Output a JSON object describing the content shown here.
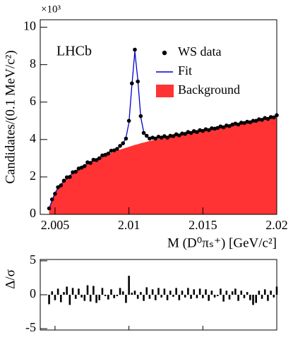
{
  "chart_data": {
    "type": "lhcb_fit",
    "brand": "LHCb",
    "y_exponent_label": "×10³",
    "ylabel": "Candidates/(0.1 MeV/c²)",
    "xlabel": "M (D⁰πₛ⁺) [GeV/c²]",
    "x": [
      2.0046,
      2.0048,
      2.005,
      2.0052,
      2.0054,
      2.0056,
      2.0058,
      2.006,
      2.0062,
      2.0064,
      2.0066,
      2.0068,
      2.007,
      2.0072,
      2.0074,
      2.0076,
      2.0078,
      2.008,
      2.0082,
      2.0084,
      2.0086,
      2.0088,
      2.009,
      2.0092,
      2.0094,
      2.0096,
      2.0098,
      2.01,
      2.0102,
      2.0104,
      2.0106,
      2.0108,
      2.011,
      2.0112,
      2.0114,
      2.0116,
      2.0118,
      2.012,
      2.0122,
      2.0124,
      2.0126,
      2.0128,
      2.013,
      2.0132,
      2.0134,
      2.0136,
      2.0138,
      2.014,
      2.0142,
      2.0144,
      2.0146,
      2.0148,
      2.015,
      2.0152,
      2.0154,
      2.0156,
      2.0158,
      2.016,
      2.0162,
      2.0164,
      2.0166,
      2.0168,
      2.017,
      2.0172,
      2.0174,
      2.0176,
      2.0178,
      2.018,
      2.0182,
      2.0184,
      2.0186,
      2.0188,
      2.019,
      2.0192,
      2.0194,
      2.0196,
      2.0198,
      2.02
    ],
    "series": [
      {
        "name": "Background",
        "kind": "area",
        "color": "#ff3333",
        "values": [
          0.3,
          0.75,
          1.15,
          1.4,
          1.6,
          1.78,
          1.93,
          2.07,
          2.2,
          2.3,
          2.4,
          2.5,
          2.6,
          2.7,
          2.78,
          2.86,
          2.94,
          3.01,
          3.08,
          3.15,
          3.22,
          3.28,
          3.34,
          3.4,
          3.46,
          3.51,
          3.56,
          3.61,
          3.66,
          3.71,
          3.75,
          3.8,
          3.84,
          3.88,
          3.92,
          3.96,
          4.0,
          4.03,
          4.06,
          4.09,
          4.12,
          4.15,
          4.18,
          4.21,
          4.24,
          4.27,
          4.3,
          4.33,
          4.36,
          4.39,
          4.42,
          4.45,
          4.48,
          4.51,
          4.54,
          4.57,
          4.6,
          4.63,
          4.66,
          4.69,
          4.72,
          4.75,
          4.78,
          4.81,
          4.84,
          4.87,
          4.9,
          4.93,
          4.96,
          4.99,
          5.02,
          5.05,
          5.08,
          5.11,
          5.14,
          5.17,
          5.2,
          5.23
        ]
      },
      {
        "name": "Fit",
        "kind": "line",
        "color": "#0000cc",
        "values": [
          0.3,
          0.75,
          1.15,
          1.4,
          1.6,
          1.78,
          1.93,
          2.07,
          2.2,
          2.3,
          2.42,
          2.52,
          2.62,
          2.72,
          2.8,
          2.88,
          2.96,
          3.04,
          3.11,
          3.19,
          3.3,
          3.37,
          3.44,
          3.52,
          3.62,
          3.78,
          4.1,
          4.9,
          6.9,
          8.7,
          7.2,
          5.2,
          4.4,
          4.15,
          4.08,
          4.07,
          4.09,
          4.1,
          4.12,
          4.14,
          4.14,
          4.17,
          4.2,
          4.23,
          4.26,
          4.29,
          4.32,
          4.35,
          4.38,
          4.41,
          4.42,
          4.45,
          4.48,
          4.51,
          4.54,
          4.57,
          4.6,
          4.63,
          4.66,
          4.69,
          4.72,
          4.75,
          4.78,
          4.81,
          4.84,
          4.87,
          4.9,
          4.93,
          4.96,
          4.99,
          5.02,
          5.05,
          5.08,
          5.11,
          5.14,
          5.17,
          5.2,
          5.23
        ]
      },
      {
        "name": "WS data",
        "kind": "points",
        "color": "#000000",
        "values": [
          0.32,
          0.8,
          1.1,
          1.45,
          1.55,
          1.8,
          1.98,
          2.0,
          2.25,
          2.28,
          2.45,
          2.5,
          2.58,
          2.78,
          2.75,
          2.92,
          2.9,
          3.0,
          3.15,
          3.18,
          3.25,
          3.4,
          3.42,
          3.5,
          3.66,
          3.8,
          4.05,
          5.0,
          7.0,
          8.8,
          7.1,
          5.25,
          4.35,
          4.2,
          4.05,
          4.1,
          4.05,
          4.15,
          4.1,
          4.18,
          4.1,
          4.2,
          4.18,
          4.28,
          4.22,
          4.32,
          4.3,
          4.4,
          4.35,
          4.45,
          4.4,
          4.5,
          4.46,
          4.55,
          4.5,
          4.6,
          4.58,
          4.62,
          4.7,
          4.65,
          4.75,
          4.72,
          4.8,
          4.85,
          4.8,
          4.9,
          4.88,
          4.95,
          4.92,
          5.0,
          5.0,
          5.08,
          5.05,
          5.15,
          5.1,
          5.2,
          5.18,
          5.3
        ]
      }
    ],
    "legend_order": [
      2,
      1,
      0
    ],
    "xlim": [
      2.004,
      2.02
    ],
    "xticks": [
      2.005,
      2.01,
      2.015,
      2.02
    ],
    "ylim": [
      0,
      10.4
    ],
    "yticks": [
      0,
      2,
      4,
      6,
      8,
      10
    ],
    "pull": {
      "ylabel": "Δ/σ",
      "ylim": [
        -5.2,
        5.2
      ],
      "yticks": [
        -5,
        0,
        5
      ],
      "color": "#000000",
      "values": [
        -1.4,
        0.5,
        -0.8,
        0.9,
        -1.1,
        0.4,
        1.2,
        -1.5,
        1.0,
        -0.6,
        0.9,
        -0.4,
        -0.9,
        1.4,
        -1.0,
        1.3,
        -1.2,
        -0.8,
        1.0,
        -0.2,
        -0.7,
        0.8,
        -0.5,
        -0.2,
        1.0,
        0.5,
        -1.2,
        2.8,
        0.3,
        0.6,
        -0.6,
        0.4,
        -0.9,
        1.1,
        -0.6,
        0.8,
        -0.8,
        1.0,
        -0.4,
        0.9,
        -0.8,
        0.6,
        -0.3,
        1.0,
        -0.8,
        0.6,
        -0.4,
        1.0,
        -0.6,
        0.8,
        -0.5,
        0.9,
        -0.5,
        0.8,
        -0.9,
        0.6,
        -0.4,
        -0.2,
        0.9,
        -1.0,
        0.6,
        -0.7,
        0.5,
        0.9,
        -0.9,
        0.6,
        -0.5,
        0.4,
        -0.8,
        -1.5,
        -1.2,
        0.6,
        -0.6,
        0.8,
        -0.9,
        0.6,
        -0.4,
        1.2
      ]
    }
  }
}
